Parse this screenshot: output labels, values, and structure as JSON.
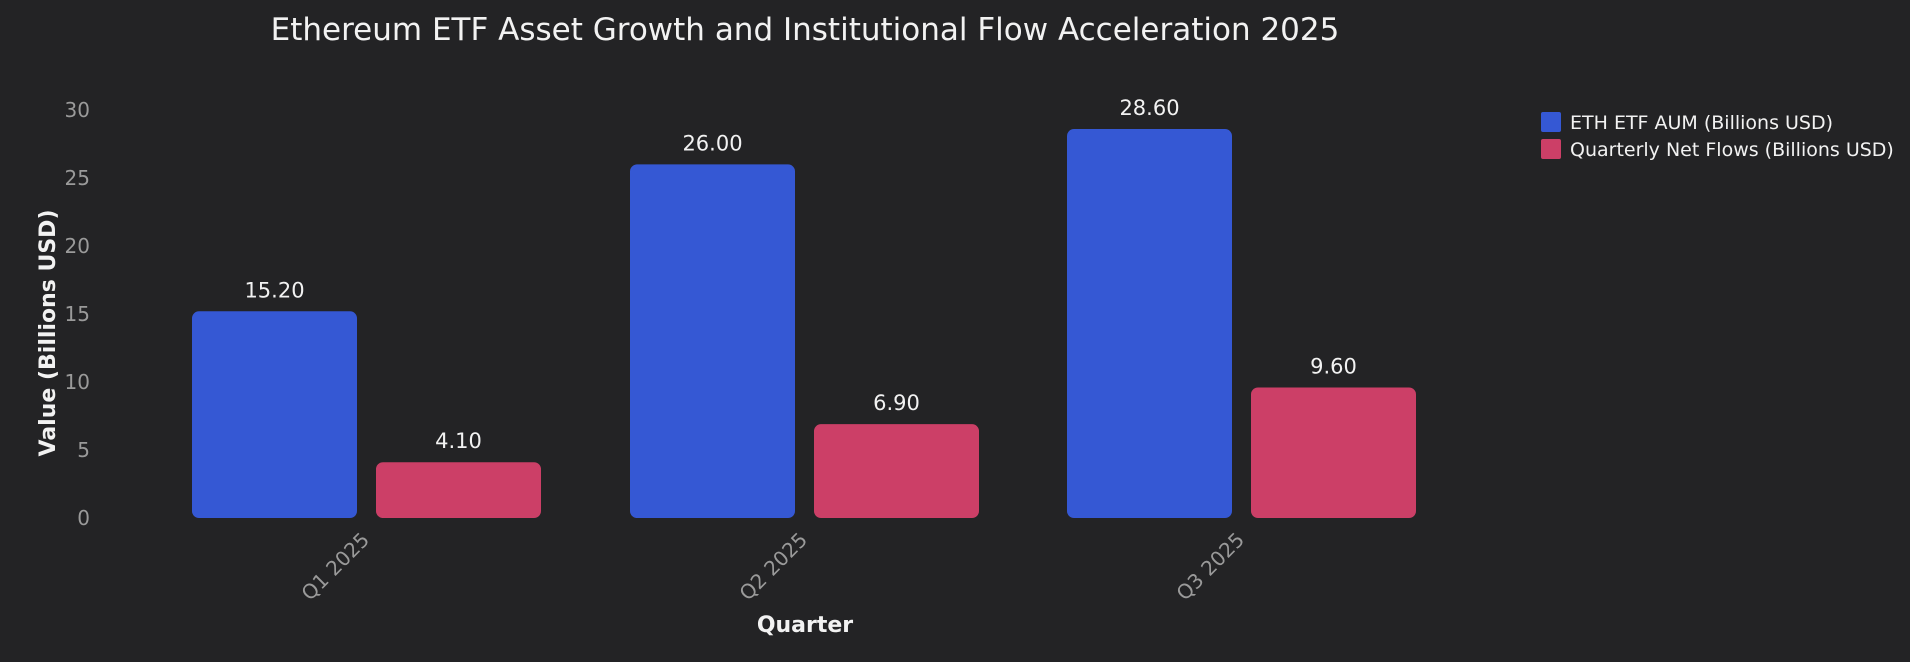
{
  "chart_data": {
    "type": "bar",
    "title": "Ethereum ETF Asset Growth and Institutional Flow Acceleration 2025",
    "xlabel": "Quarter",
    "ylabel": "Value (Billions USD)",
    "categories": [
      "Q1 2025",
      "Q2 2025",
      "Q3 2025"
    ],
    "series": [
      {
        "name": "ETH ETF AUM (Billions USD)",
        "values": [
          15.2,
          26.0,
          28.6
        ],
        "labels": [
          "15.20",
          "26.00",
          "28.60"
        ],
        "color": "#3558d4"
      },
      {
        "name": "Quarterly Net Flows (Billions USD)",
        "values": [
          4.1,
          6.9,
          9.6
        ],
        "labels": [
          "4.10",
          "6.90",
          "9.60"
        ],
        "color": "#cc3f67"
      }
    ],
    "ylim": [
      0,
      30
    ],
    "yticks": [
      "0",
      "5",
      "10",
      "15",
      "20",
      "25",
      "30"
    ],
    "grid": false,
    "legend_position": "top-right",
    "background": "#232325"
  }
}
